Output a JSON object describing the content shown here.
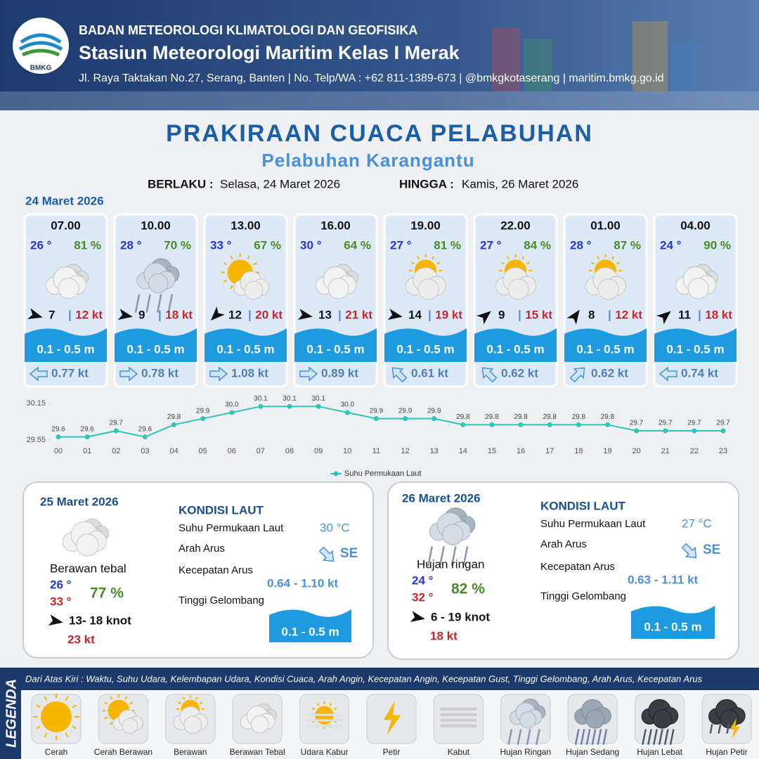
{
  "header": {
    "org": "BADAN METEOROLOGI KLIMATOLOGI DAN GEOFISIKA",
    "station": "Stasiun Meteorologi Maritim Kelas I Merak",
    "address": "Jl. Raya Taktakan No.27, Serang, Banten | No. Telp/WA : +62 811-1389-673 | @bmkgkotaserang | maritim.bmkg.go.id",
    "logo": "BMKG"
  },
  "title": "PRAKIRAAN CUACA PELABUHAN",
  "subtitle": "Pelabuhan Karangantu",
  "validity": {
    "from_label": "BERLAKU :",
    "from": "Selasa, 24 Maret 2026",
    "to_label": "HINGGA :",
    "to": "Kamis, 26 Maret 2026"
  },
  "day1": {
    "date": "24 Maret 2026",
    "slots": [
      {
        "time": "07.00",
        "temp": "26 °",
        "humidity": "81 %",
        "wind": "7",
        "sep": "|",
        "gust": "12 kt",
        "wave": "0.1 - 0.5 m",
        "current": "0.77 kt"
      },
      {
        "time": "10.00",
        "temp": "28 °",
        "humidity": "70 %",
        "wind": "9",
        "sep": "|",
        "gust": "18 kt",
        "wave": "0.1 - 0.5 m",
        "current": "0.78 kt"
      },
      {
        "time": "13.00",
        "temp": "33 °",
        "humidity": "67 %",
        "wind": "12",
        "sep": "|",
        "gust": "20 kt",
        "wave": "0.1 - 0.5 m",
        "current": "1.08 kt"
      },
      {
        "time": "16.00",
        "temp": "30 °",
        "humidity": "64 %",
        "wind": "13",
        "sep": "|",
        "gust": "21 kt",
        "wave": "0.1 - 0.5 m",
        "current": "0.89 kt"
      },
      {
        "time": "19.00",
        "temp": "27 °",
        "humidity": "81 %",
        "wind": "14",
        "sep": "|",
        "gust": "19 kt",
        "wave": "0.1 - 0.5 m",
        "current": "0.61 kt"
      },
      {
        "time": "22.00",
        "temp": "27 °",
        "humidity": "84 %",
        "wind": "9",
        "sep": "|",
        "gust": "15 kt",
        "wave": "0.1 - 0.5 m",
        "current": "0.62 kt"
      },
      {
        "time": "01.00",
        "temp": "28 °",
        "humidity": "87 %",
        "wind": "8",
        "sep": "|",
        "gust": "12 kt",
        "wave": "0.1 - 0.5 m",
        "current": "0.62 kt"
      },
      {
        "time": "04.00",
        "temp": "24 °",
        "humidity": "90 %",
        "wind": "11",
        "sep": "|",
        "gust": "18 kt",
        "wave": "0.1 - 0.5 m",
        "current": "0.74 kt"
      }
    ]
  },
  "chart_data": {
    "type": "line",
    "categories": [
      "00",
      "01",
      "02",
      "03",
      "04",
      "05",
      "06",
      "07",
      "08",
      "09",
      "10",
      "11",
      "12",
      "13",
      "14",
      "15",
      "16",
      "17",
      "18",
      "19",
      "20",
      "21",
      "22",
      "23"
    ],
    "series": [
      {
        "name": "Suhu Permukaan Laut",
        "color": "#2ec4b6",
        "values": [
          29.6,
          29.6,
          29.7,
          29.6,
          29.8,
          29.9,
          30.0,
          30.1,
          30.1,
          30.1,
          30.0,
          29.9,
          29.9,
          29.9,
          29.8,
          29.8,
          29.8,
          29.8,
          29.8,
          29.8,
          29.7,
          29.7,
          29.7,
          29.7
        ],
        "value_labels": [
          "29.6",
          "29.6",
          "29.7",
          "29.6",
          "29.8",
          "29.9",
          "30.0",
          "30.1",
          "30.1",
          "30.1",
          "30.0",
          "29.9",
          "29.9",
          "29.9",
          "29.8",
          "29.8",
          "29.8",
          "29.8",
          "29.8",
          "29.8",
          "29.7",
          "29.7",
          "29.7",
          "29.7"
        ]
      }
    ],
    "ylim": [
      29.55,
      30.15
    ],
    "yticks": [
      29.55,
      30.15
    ],
    "legend": "bottom"
  },
  "days": [
    {
      "date": "25 Maret 2026",
      "condition": "Berawan tebal",
      "temp_min": "26 °",
      "temp_max": "33 °",
      "humidity": "77 %",
      "wind": "13- 18 knot",
      "gust": "23 kt",
      "sea": {
        "title": "KONDISI LAUT",
        "sst_label": "Suhu Permukaan Laut",
        "sst": "30 °C",
        "dir_label": "Arah Arus",
        "dir": "SE",
        "speed_label": "Kecepatan Arus",
        "speed": "0.64 - 1.10 kt",
        "wave_label": "Tinggi Gelombang",
        "wave": "0.1 - 0.5 m"
      }
    },
    {
      "date": "26 Maret 2026",
      "condition": "Hujan ringan",
      "temp_min": "24 °",
      "temp_max": "32 °",
      "humidity": "82 %",
      "wind": "6  - 19 knot",
      "gust": "18 kt",
      "sea": {
        "title": "KONDISI LAUT",
        "sst_label": "Suhu Permukaan Laut",
        "sst": "27 °C",
        "dir_label": "Arah Arus",
        "dir": "SE",
        "speed_label": "Kecepatan Arus",
        "speed": "0.63 - 1.11 kt",
        "wave_label": "Tinggi Gelombang",
        "wave": "0.1 - 0.5 m"
      }
    }
  ],
  "legend": {
    "title": "LEGENDA",
    "description": "Dari Atas Kiri : Waktu, Suhu Udara, Kelembapan Udara, Kondisi Cuaca, Arah Angin, Kecepatan Angin, Kecepatan Gust, Tinggi Gelombang, Arah Arus, Kecepatan Arus",
    "items": [
      "Cerah",
      "Cerah Berawan",
      "Berawan",
      "Berawan Tebal",
      "Udara Kabur",
      "Petir",
      "Kabut",
      "Hujan Ringan",
      "Hujan Sedang",
      "Hujan Lebat",
      "Hujan Petir"
    ]
  }
}
